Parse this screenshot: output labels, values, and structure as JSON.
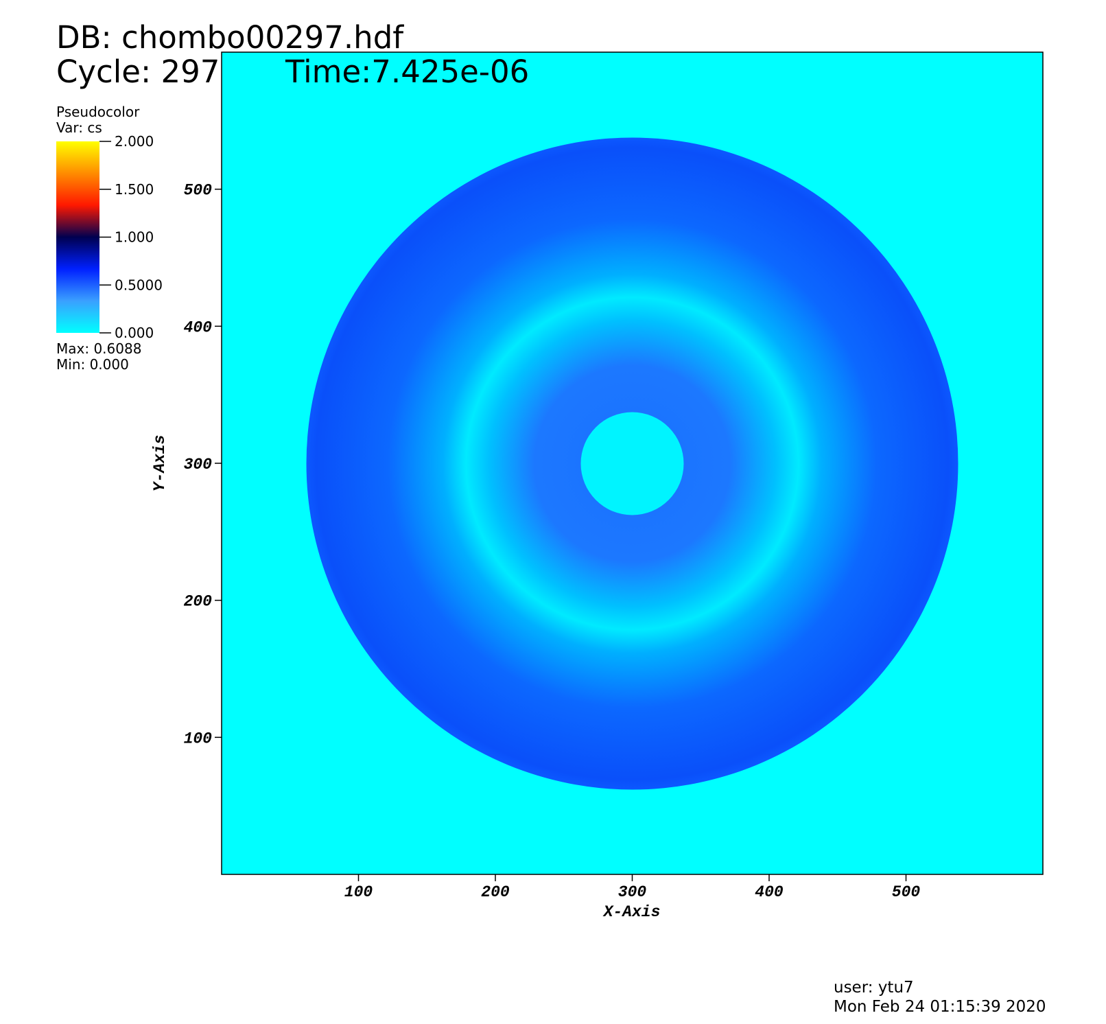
{
  "chart_data": {
    "type": "pseudocolor",
    "database": "DB: chombo00297.hdf",
    "cycle": "Cycle: 297",
    "time": "Time:7.425e-06",
    "xlabel": "X-Axis",
    "ylabel": "Y-Axis",
    "xlim": [
      0,
      600
    ],
    "ylim": [
      0,
      600
    ],
    "xticks": [
      100,
      200,
      300,
      400,
      500
    ],
    "yticks": [
      100,
      200,
      300,
      400,
      500
    ],
    "legend": {
      "title": "Pseudocolor",
      "variable": "Var: cs",
      "lim": [
        0,
        2
      ],
      "ticks": [
        {
          "value": 0,
          "label": "0.000"
        },
        {
          "value": 0.5,
          "label": "0.5000"
        },
        {
          "value": 1,
          "label": "1.000"
        },
        {
          "value": 1.5,
          "label": "1.500"
        },
        {
          "value": 2,
          "label": "2.000"
        }
      ],
      "colormap": [
        "#00ffff",
        "#3aa0ff",
        "#0020ff",
        "#000050",
        "#ff1800",
        "#ff8c00",
        "#ffff00"
      ],
      "max": "Max:  0.6088",
      "min": "Min:  0.000"
    },
    "user": "user: ytu7",
    "date": "Mon Feb 24 01:15:39 2020"
  }
}
